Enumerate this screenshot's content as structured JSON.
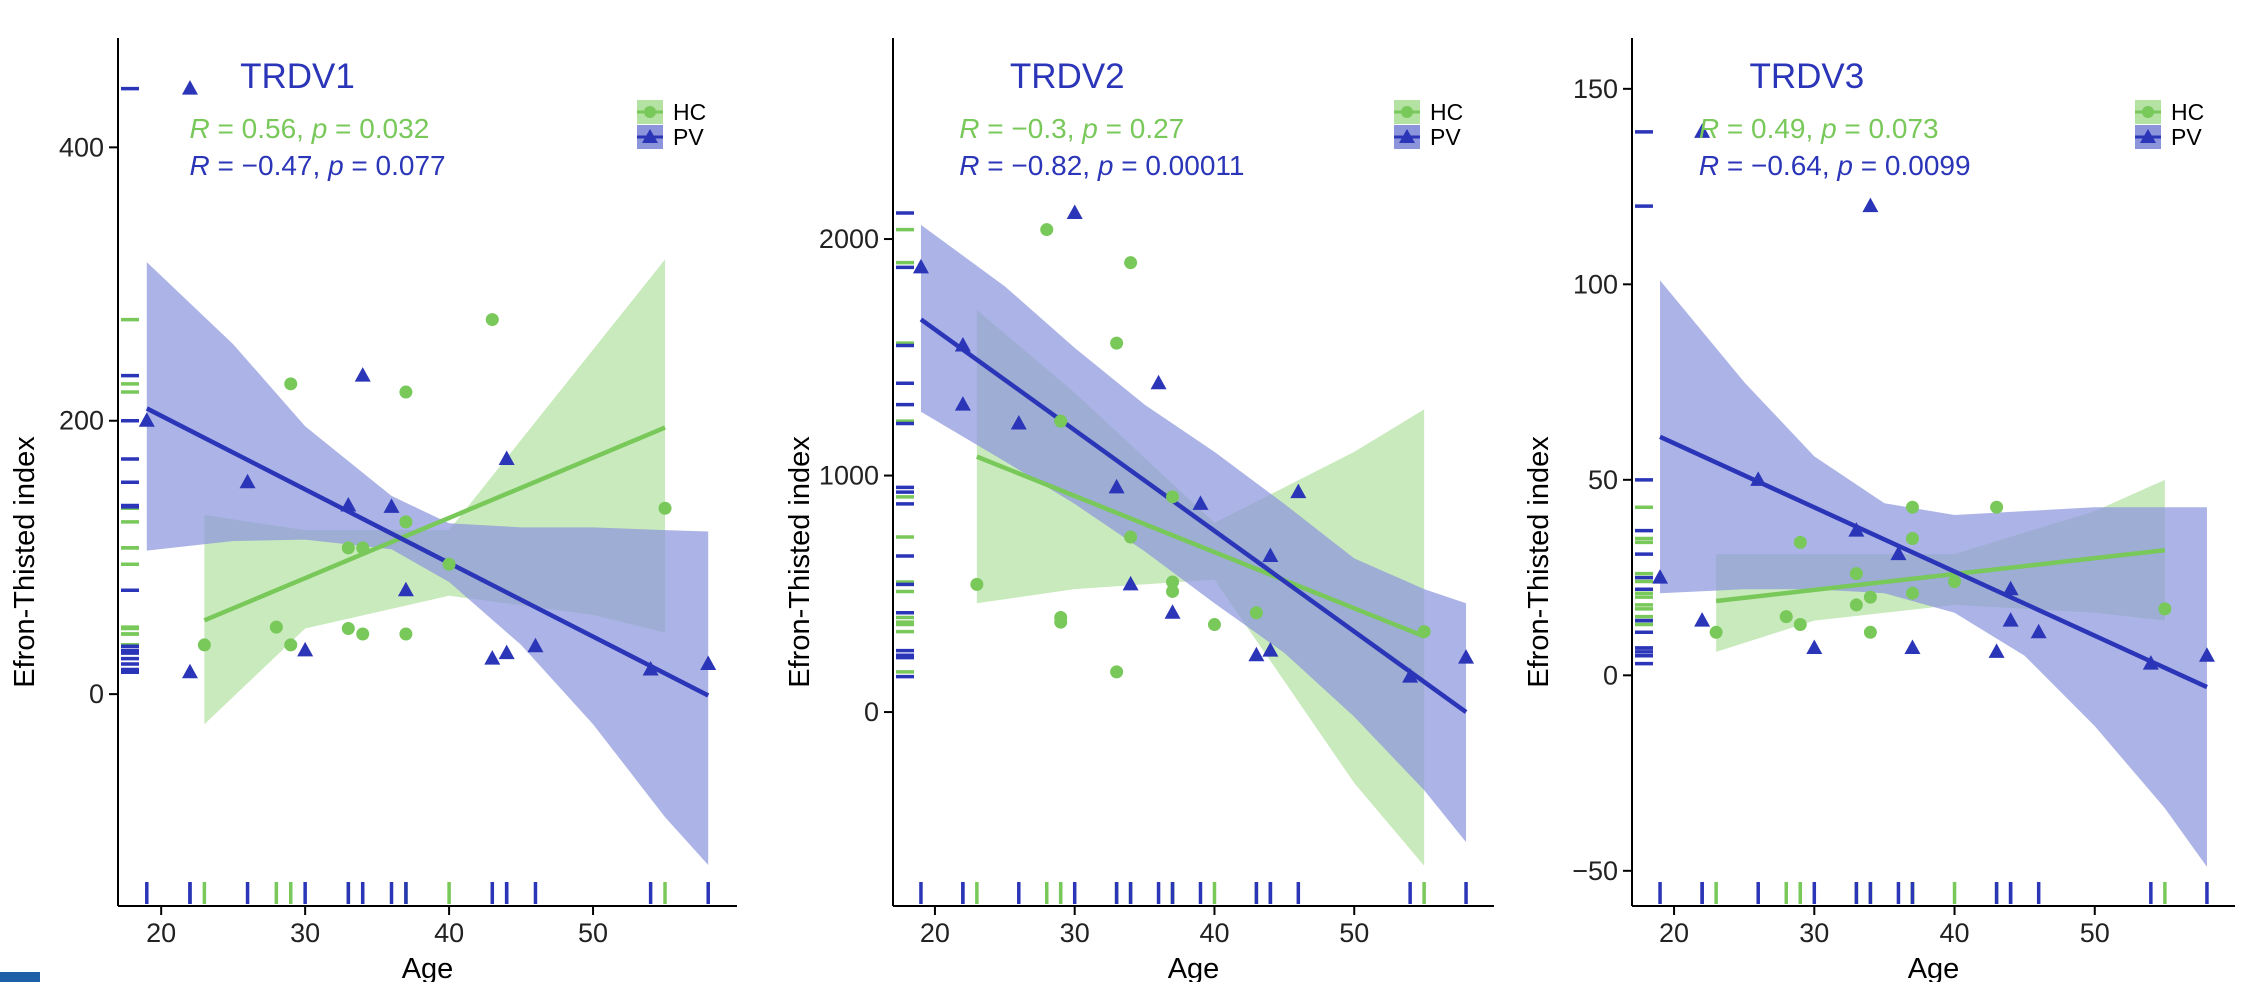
{
  "figure": {
    "colors": {
      "HC": "#78c85a",
      "PV": "#2b35b8",
      "HC_band": "#b4e2a2",
      "PV_band": "#8c95dc",
      "axis": "#000000"
    },
    "stat_prefix": "R",
    "legend_labels": [
      "HC",
      "PV"
    ]
  },
  "chart_data": [
    {
      "type": "scatter",
      "title": "TRDV1",
      "xlabel": "Age",
      "ylabel": "Efron-Thisted index",
      "xlim": [
        17,
        60
      ],
      "ylim": [
        -155,
        480
      ],
      "xticks": [
        20,
        30,
        40,
        50
      ],
      "yticks": [
        0,
        200,
        400
      ],
      "legend": "top-right",
      "stats": [
        {
          "series": "HC",
          "R": "0.56",
          "p": "0.032"
        },
        {
          "series": "PV",
          "R": "−0.47",
          "p": "0.077"
        }
      ],
      "series": [
        {
          "name": "HC",
          "marker": "circle",
          "points": [
            [
              23,
              36
            ],
            [
              28,
              49
            ],
            [
              29,
              36
            ],
            [
              29,
              227
            ],
            [
              33,
              48
            ],
            [
              33,
              107
            ],
            [
              34,
              44
            ],
            [
              34,
              107
            ],
            [
              37,
              44
            ],
            [
              37,
              126
            ],
            [
              37,
              221
            ],
            [
              40,
              95
            ],
            [
              43,
              274
            ],
            [
              55,
              136
            ]
          ],
          "fit": {
            "x": [
              23,
              55
            ],
            "y": [
              54,
              195
            ]
          },
          "ci": {
            "x": [
              23,
              30,
              40,
              50,
              55
            ],
            "lower": [
              -22,
              48,
              72,
              58,
              45
            ],
            "upper": [
              131,
              120,
              120,
              252,
              318
            ]
          }
        },
        {
          "name": "PV",
          "marker": "triangle",
          "points": [
            [
              19,
              200
            ],
            [
              22,
              16
            ],
            [
              22,
              443
            ],
            [
              26,
              155
            ],
            [
              30,
              32
            ],
            [
              33,
              138
            ],
            [
              34,
              233
            ],
            [
              36,
              137
            ],
            [
              37,
              76
            ],
            [
              43,
              26
            ],
            [
              44,
              30
            ],
            [
              44,
              172
            ],
            [
              46,
              35
            ],
            [
              54,
              18
            ],
            [
              58,
              22
            ]
          ],
          "fit": {
            "x": [
              19,
              58
            ],
            "y": [
              209,
              -1
            ]
          },
          "ci": {
            "x": [
              19,
              25,
              30,
              36,
              40,
              45,
              50,
              55,
              58
            ],
            "lower": [
              105,
              112,
              113,
              106,
              82,
              36,
              -22,
              -90,
              -125
            ],
            "upper": [
              316,
              256,
              196,
              145,
              125,
              122,
              122,
              120,
              119
            ]
          }
        }
      ]
    },
    {
      "type": "scatter",
      "title": "TRDV2",
      "xlabel": "Age",
      "ylabel": "Efron-Thisted index",
      "xlim": [
        17,
        60
      ],
      "ylim": [
        -820,
        2850
      ],
      "xticks": [
        20,
        30,
        40,
        50
      ],
      "yticks": [
        0,
        1000,
        2000
      ],
      "legend": "top-right",
      "stats": [
        {
          "series": "HC",
          "R": "−0.3",
          "p": "0.27"
        },
        {
          "series": "PV",
          "R": "−0.82",
          "p": "0.00011"
        }
      ],
      "series": [
        {
          "name": "HC",
          "marker": "circle",
          "points": [
            [
              23,
              540
            ],
            [
              28,
              2040
            ],
            [
              29,
              380
            ],
            [
              29,
              400
            ],
            [
              29,
              1230
            ],
            [
              33,
              1560
            ],
            [
              33,
              170
            ],
            [
              34,
              1900
            ],
            [
              34,
              740
            ],
            [
              37,
              550
            ],
            [
              37,
              510
            ],
            [
              37,
              910
            ],
            [
              40,
              370
            ],
            [
              43,
              420
            ],
            [
              55,
              340
            ]
          ],
          "fit": {
            "x": [
              23,
              55
            ],
            "y": [
              1080,
              320
            ]
          },
          "ci": {
            "x": [
              23,
              30,
              40,
              50,
              55
            ],
            "lower": [
              460,
              520,
              560,
              -300,
              -650
            ],
            "upper": [
              1700,
              1350,
              800,
              1100,
              1280
            ]
          }
        },
        {
          "name": "PV",
          "marker": "triangle",
          "points": [
            [
              19,
              1880
            ],
            [
              22,
              1550
            ],
            [
              22,
              1300
            ],
            [
              26,
              1220
            ],
            [
              30,
              2110
            ],
            [
              33,
              950
            ],
            [
              34,
              540
            ],
            [
              36,
              1390
            ],
            [
              37,
              420
            ],
            [
              39,
              880
            ],
            [
              43,
              240
            ],
            [
              44,
              660
            ],
            [
              44,
              260
            ],
            [
              46,
              930
            ],
            [
              54,
              150
            ],
            [
              58,
              230
            ]
          ],
          "fit": {
            "x": [
              19,
              58
            ],
            "y": [
              1660,
              0
            ]
          },
          "ci": {
            "x": [
              19,
              25,
              30,
              35,
              40,
              45,
              50,
              55,
              58
            ],
            "lower": [
              1270,
              1060,
              880,
              680,
              460,
              250,
              -20,
              -330,
              -550
            ],
            "upper": [
              2060,
              1800,
              1540,
              1300,
              1100,
              880,
              650,
              520,
              460
            ]
          }
        }
      ]
    },
    {
      "type": "scatter",
      "title": "TRDV3",
      "xlabel": "Age",
      "ylabel": "Efron-Thisted index",
      "xlim": [
        17,
        60
      ],
      "ylim": [
        -59,
        163
      ],
      "xticks": [
        20,
        30,
        40,
        50
      ],
      "yticks": [
        -50,
        0,
        50,
        100,
        150
      ],
      "legend": "top-right",
      "stats": [
        {
          "series": "HC",
          "R": "0.49",
          "p": "0.073"
        },
        {
          "series": "PV",
          "R": "−0.64",
          "p": "0.0099"
        }
      ],
      "series": [
        {
          "name": "HC",
          "marker": "circle",
          "points": [
            [
              23,
              11
            ],
            [
              28,
              15
            ],
            [
              29,
              13
            ],
            [
              29,
              34
            ],
            [
              33,
              18
            ],
            [
              33,
              26
            ],
            [
              34,
              11
            ],
            [
              34,
              20
            ],
            [
              37,
              21
            ],
            [
              37,
              35
            ],
            [
              37,
              43
            ],
            [
              40,
              24
            ],
            [
              43,
              43
            ],
            [
              55,
              17
            ]
          ],
          "fit": {
            "x": [
              23,
              55
            ],
            "y": [
              19,
              32
            ]
          },
          "ci": {
            "x": [
              23,
              30,
              40,
              50,
              55
            ],
            "lower": [
              6,
              14,
              18,
              16,
              14
            ],
            "upper": [
              31,
              31,
              31,
              42,
              50
            ]
          }
        },
        {
          "name": "PV",
          "marker": "triangle",
          "points": [
            [
              19,
              25
            ],
            [
              22,
              14
            ],
            [
              22,
              139
            ],
            [
              26,
              50
            ],
            [
              30,
              7
            ],
            [
              33,
              37
            ],
            [
              34,
              120
            ],
            [
              36,
              31
            ],
            [
              37,
              7
            ],
            [
              43,
              6
            ],
            [
              44,
              14
            ],
            [
              44,
              22
            ],
            [
              46,
              11
            ],
            [
              54,
              3
            ],
            [
              58,
              5
            ]
          ],
          "fit": {
            "x": [
              19,
              58
            ],
            "y": [
              61,
              -3
            ]
          },
          "ci": {
            "x": [
              19,
              25,
              30,
              35,
              40,
              45,
              50,
              55,
              58
            ],
            "lower": [
              21,
              22,
              22,
              21,
              16,
              5,
              -13,
              -34,
              -49
            ],
            "upper": [
              101,
              75,
              56,
              44,
              41,
              42,
              43,
              43,
              43
            ]
          }
        }
      ]
    }
  ]
}
